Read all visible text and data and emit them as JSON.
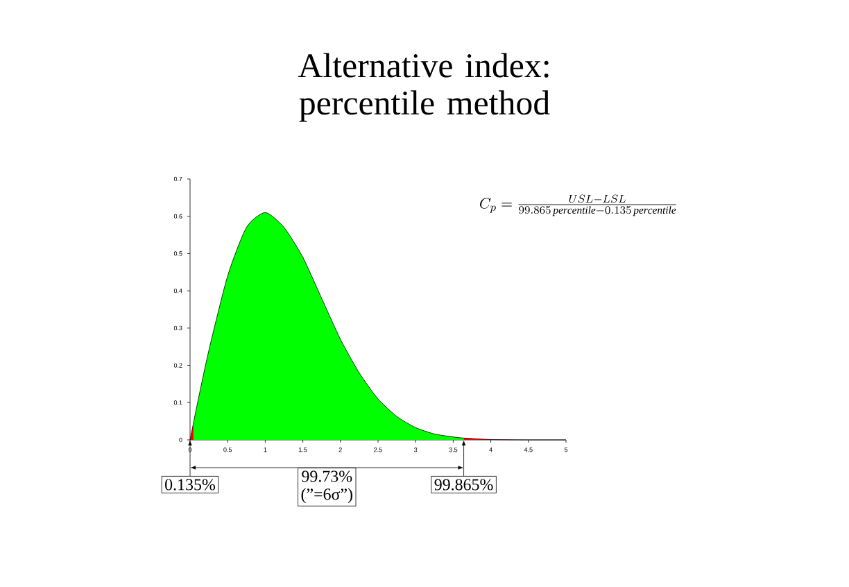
{
  "chart_data": {
    "type": "area",
    "title": "Alternative index: percentile method",
    "xlim": [
      0,
      5
    ],
    "ylim": [
      0,
      0.7
    ],
    "xticks": [
      0,
      0.5,
      1,
      1.5,
      2,
      2.5,
      3,
      3.5,
      4,
      4.5,
      5
    ],
    "yticks": [
      0,
      0.1,
      0.2,
      0.3,
      0.4,
      0.5,
      0.6,
      0.7
    ],
    "series": [
      {
        "color": "#ff0000",
        "x": [
          0,
          0.05
        ],
        "values": [
          0,
          0.05
        ]
      },
      {
        "color": "#00ff00",
        "x": [
          0.05,
          0.1,
          0.25,
          0.5,
          0.75,
          1,
          1.25,
          1.5,
          1.75,
          2,
          2.25,
          2.5,
          2.75,
          3,
          3.25,
          3.5,
          3.64
        ],
        "values": [
          0.05,
          0.1,
          0.24,
          0.44,
          0.57,
          0.61,
          0.57,
          0.49,
          0.38,
          0.27,
          0.18,
          0.11,
          0.063,
          0.033,
          0.016,
          0.008,
          0.005
        ]
      },
      {
        "color": "#ff0000",
        "x": [
          3.64,
          4,
          4.5,
          5
        ],
        "values": [
          0.005,
          0.001,
          0,
          0
        ]
      },
      {
        "type": "line",
        "color": "#000000",
        "x": [
          0,
          0.05,
          0.1,
          0.25,
          0.5,
          0.75,
          1,
          1.25,
          1.5,
          1.75,
          2,
          2.25,
          2.5,
          2.75,
          3,
          3.25,
          3.5,
          3.64,
          4,
          4.5,
          5
        ],
        "values": [
          0,
          0.05,
          0.1,
          0.24,
          0.44,
          0.57,
          0.61,
          0.57,
          0.49,
          0.38,
          0.27,
          0.18,
          0.11,
          0.063,
          0.033,
          0.016,
          0.008,
          0.005,
          0.001,
          0,
          0
        ]
      }
    ],
    "annotations": [
      {
        "text": "0.135%",
        "x": 0,
        "y": 0
      },
      "99.73%",
      {
        "text": "99.865%",
        "x": 3.64,
        "y": 0
      },
      "(”=6σ”)",
      "C_p = \\frac{USL - LSL}{99.865\\,\\mathit{percentile} - 0.135\\,\\mathit{percentile}}"
    ],
    "grid": false,
    "marker": "none",
    "line_style": "solid"
  }
}
